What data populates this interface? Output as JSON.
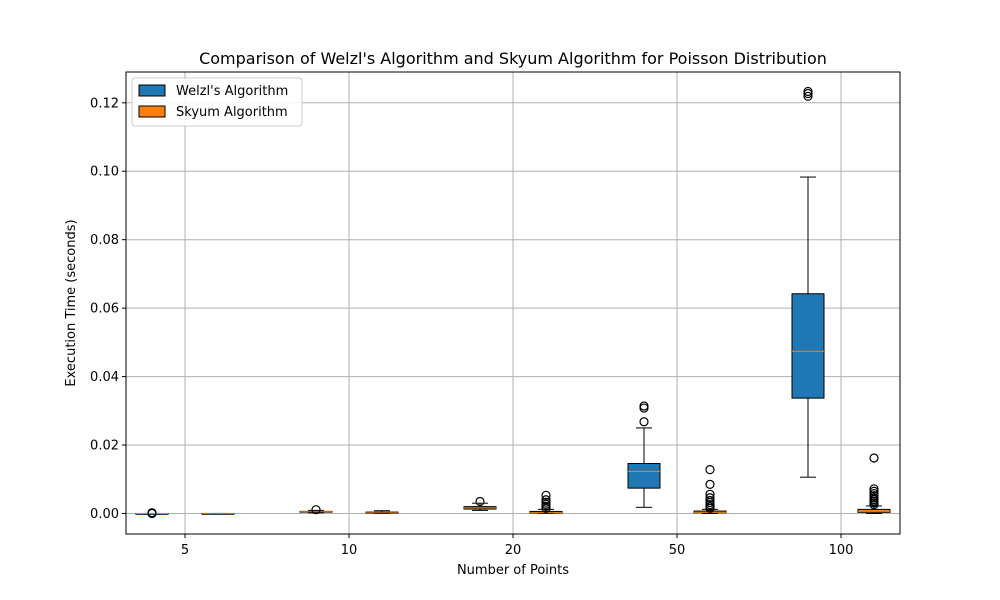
{
  "chart_data": {
    "type": "boxplot",
    "title": "Comparison of Welzl's Algorithm and Skyum Algorithm for Poisson Distribution",
    "xlabel": "Number of Points",
    "ylabel": "Execution Time (seconds)",
    "categories": [
      "5",
      "10",
      "20",
      "50",
      "100"
    ],
    "ylim": [
      -0.006,
      0.129
    ],
    "yticks": [
      0.0,
      0.02,
      0.04,
      0.06,
      0.08,
      0.1,
      0.12
    ],
    "ytick_labels": [
      "0.00",
      "0.02",
      "0.04",
      "0.06",
      "0.08",
      "0.10",
      "0.12"
    ],
    "grid": true,
    "legend_position": "top-left",
    "series": [
      {
        "name": "Welzl's Algorithm",
        "color": "#1f77b4",
        "boxes": [
          {
            "whislo": 0.0,
            "q1": 0.0,
            "med": 0.0,
            "q3": 0.0,
            "whishi": 0.0,
            "fliers": [
              0.0,
              0.0002
            ]
          },
          {
            "whislo": 0.0002,
            "q1": 0.0004,
            "med": 0.0005,
            "q3": 0.0006,
            "whishi": 0.0009,
            "fliers": [
              0.0011
            ]
          },
          {
            "whislo": 0.0009,
            "q1": 0.0013,
            "med": 0.0016,
            "q3": 0.002,
            "whishi": 0.003,
            "fliers": [
              0.0035
            ]
          },
          {
            "whislo": 0.0018,
            "q1": 0.0074,
            "med": 0.0123,
            "q3": 0.0146,
            "whishi": 0.025,
            "fliers": [
              0.0268,
              0.0308,
              0.0314
            ]
          },
          {
            "whislo": 0.0106,
            "q1": 0.0337,
            "med": 0.0474,
            "q3": 0.0642,
            "whishi": 0.0983,
            "fliers": [
              0.1219,
              0.1227,
              0.1233
            ]
          }
        ]
      },
      {
        "name": "Skyum Algorithm",
        "color": "#ff7f0e",
        "boxes": [
          {
            "whislo": 0.0,
            "q1": 0.0,
            "med": 0.0,
            "q3": 0.0,
            "whishi": 0.0,
            "fliers": []
          },
          {
            "whislo": 0.0,
            "q1": 0.0001,
            "med": 0.0002,
            "q3": 0.0004,
            "whishi": 0.0008,
            "fliers": []
          },
          {
            "whislo": 0.0,
            "q1": 0.0001,
            "med": 0.0002,
            "q3": 0.0006,
            "whishi": 0.0012,
            "fliers": [
              0.0015,
              0.0021,
              0.0027,
              0.0033,
              0.004,
              0.0053
            ]
          },
          {
            "whislo": 0.0,
            "q1": 0.0002,
            "med": 0.0003,
            "q3": 0.0007,
            "whishi": 0.0012,
            "fliers": [
              0.0015,
              0.002,
              0.0026,
              0.0032,
              0.0038,
              0.0046,
              0.0056,
              0.0085,
              0.0128
            ]
          },
          {
            "whislo": 0.0,
            "q1": 0.0003,
            "med": 0.0005,
            "q3": 0.0012,
            "whishi": 0.0022,
            "fliers": [
              0.0026,
              0.0031,
              0.0036,
              0.0041,
              0.0046,
              0.0052,
              0.0058,
              0.0065,
              0.0072,
              0.0162
            ]
          }
        ]
      }
    ]
  }
}
